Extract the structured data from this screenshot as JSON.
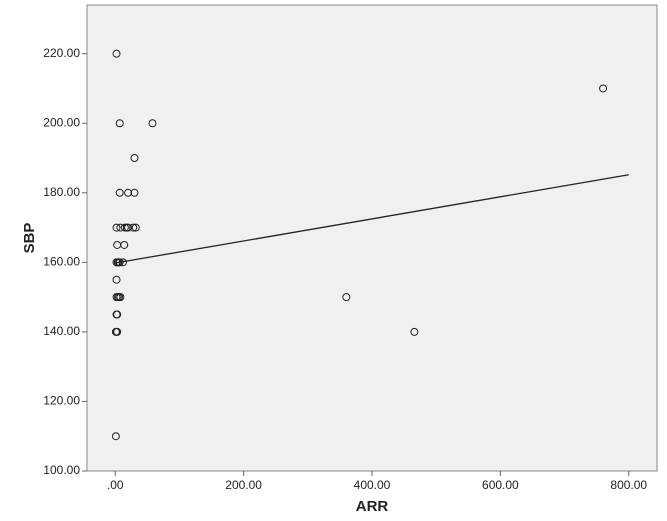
{
  "chart_data": {
    "type": "scatter",
    "xlabel": "ARR",
    "ylabel": "SBP",
    "x": [
      2,
      760,
      7,
      58,
      30,
      7,
      20,
      30,
      2,
      8,
      15,
      18,
      20,
      28,
      32,
      3,
      14,
      2,
      4,
      5,
      7,
      12,
      2,
      2,
      4,
      6,
      8,
      360,
      2,
      3,
      1,
      2,
      3,
      466,
      1
    ],
    "y": [
      220,
      210,
      200,
      200,
      190,
      180,
      180,
      180,
      170,
      170,
      170,
      170,
      170,
      170,
      170,
      165,
      165,
      160,
      160,
      160,
      160,
      160,
      155,
      150,
      150,
      150,
      150,
      150,
      145,
      145,
      140,
      140,
      140,
      140,
      110
    ],
    "fit_line": {
      "x": [
        0,
        800
      ],
      "y": [
        159.8,
        185.2
      ]
    },
    "xlim": [
      -44,
      844
    ],
    "ylim": [
      100,
      234
    ],
    "xticks": [
      {
        "value": 0,
        "label": ".00"
      },
      {
        "value": 200,
        "label": "200.00"
      },
      {
        "value": 400,
        "label": "400.00"
      },
      {
        "value": 600,
        "label": "600.00"
      },
      {
        "value": 800,
        "label": "800.00"
      }
    ],
    "yticks": [
      {
        "value": 100,
        "label": "100.00"
      },
      {
        "value": 120,
        "label": "120.00"
      },
      {
        "value": 140,
        "label": "140.00"
      },
      {
        "value": 160,
        "label": "160.00"
      },
      {
        "value": 180,
        "label": "180.00"
      },
      {
        "value": 200,
        "label": "200.00"
      },
      {
        "value": 220,
        "label": "220.00"
      }
    ]
  }
}
